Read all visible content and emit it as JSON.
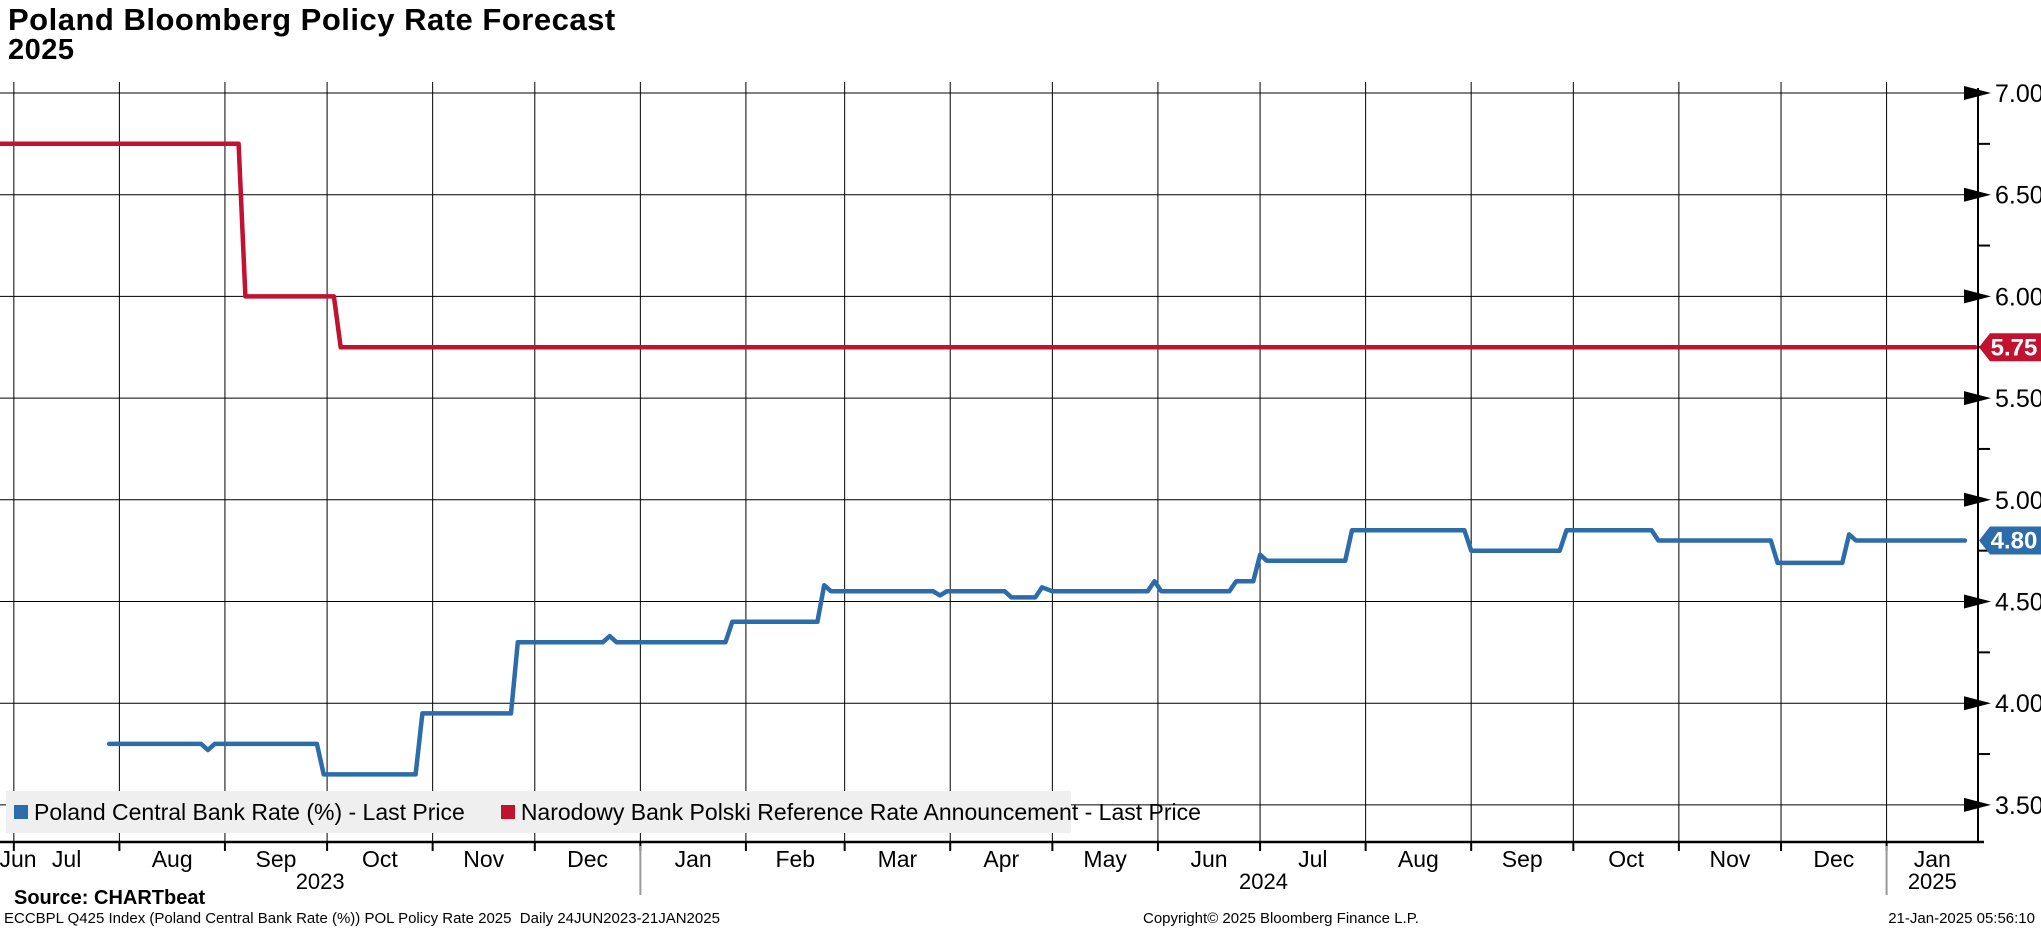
{
  "title": {
    "line1": "Poland Bloomberg Policy Rate Forecast",
    "line2": "2025"
  },
  "legend": {
    "items": [
      {
        "label": "Poland Central Bank Rate (%) - Last Price",
        "color": "#2d6cab"
      },
      {
        "label": "Narodowy Bank Polski Reference Rate Announcement - Last Price",
        "color": "#c11230"
      }
    ]
  },
  "footer": {
    "source": "Source: CHARTbeat",
    "ticker_line": "ECCBPL Q425 Index (Poland Central Bank Rate (%)) POL Policy Rate 2025  Daily 24JUN2023-21JAN2025",
    "copyright": "Copyright© 2025 Bloomberg Finance L.P.",
    "datetime": "21-Jan-2025 05:56:10"
  },
  "chart_data": {
    "type": "line",
    "title": "Poland Bloomberg Policy Rate Forecast 2025",
    "x_axis": {
      "start_date": "2023-06-24",
      "end_date": "2025-01-27",
      "years": [
        {
          "year": "2023",
          "months": [
            "Jun",
            "Jul",
            "Aug",
            "Sep",
            "Oct",
            "Nov",
            "Dec"
          ]
        },
        {
          "year": "2024",
          "months": [
            "Jan",
            "Feb",
            "Mar",
            "Apr",
            "May",
            "Jun",
            "Jul",
            "Aug",
            "Sep",
            "Oct",
            "Nov",
            "Dec"
          ]
        },
        {
          "year": "2025",
          "months": [
            "Jan"
          ]
        }
      ]
    },
    "y_axis": {
      "min": 3.5,
      "max": 7.0,
      "major_step": 0.5,
      "minor_step": 0.25,
      "tick_labels": [
        "7.00",
        "6.50",
        "6.00",
        "5.50",
        "5.00",
        "4.50",
        "4.00",
        "3.50"
      ],
      "grid": true
    },
    "series": [
      {
        "name": "Narodowy Bank Polski Reference Rate Announcement - Last Price",
        "color": "#c11230",
        "last_price": "5.75",
        "points": [
          [
            "2023-06-24",
            6.75
          ],
          [
            "2023-09-05",
            6.75
          ],
          [
            "2023-09-07",
            6.0
          ],
          [
            "2023-10-03",
            6.0
          ],
          [
            "2023-10-05",
            5.75
          ],
          [
            "2025-01-27",
            5.75
          ]
        ]
      },
      {
        "name": "Poland Central Bank Rate (%) - Last Price",
        "color": "#2d6cab",
        "last_price": "4.80",
        "points": [
          [
            "2023-07-29",
            3.8
          ],
          [
            "2023-08-25",
            3.8
          ],
          [
            "2023-08-27",
            3.77
          ],
          [
            "2023-08-29",
            3.8
          ],
          [
            "2023-09-28",
            3.8
          ],
          [
            "2023-09-30",
            3.65
          ],
          [
            "2023-10-27",
            3.65
          ],
          [
            "2023-10-29",
            3.95
          ],
          [
            "2023-11-24",
            3.95
          ],
          [
            "2023-11-26",
            4.3
          ],
          [
            "2023-12-21",
            4.3
          ],
          [
            "2023-12-23",
            4.33
          ],
          [
            "2023-12-25",
            4.3
          ],
          [
            "2024-01-26",
            4.3
          ],
          [
            "2024-01-28",
            4.4
          ],
          [
            "2024-02-22",
            4.4
          ],
          [
            "2024-02-24",
            4.58
          ],
          [
            "2024-02-26",
            4.55
          ],
          [
            "2024-03-27",
            4.55
          ],
          [
            "2024-03-29",
            4.53
          ],
          [
            "2024-03-31",
            4.55
          ],
          [
            "2024-04-17",
            4.55
          ],
          [
            "2024-04-19",
            4.52
          ],
          [
            "2024-04-26",
            4.52
          ],
          [
            "2024-04-28",
            4.57
          ],
          [
            "2024-05-01",
            4.55
          ],
          [
            "2024-05-29",
            4.55
          ],
          [
            "2024-05-31",
            4.6
          ],
          [
            "2024-06-02",
            4.55
          ],
          [
            "2024-06-22",
            4.55
          ],
          [
            "2024-06-24",
            4.6
          ],
          [
            "2024-06-29",
            4.6
          ],
          [
            "2024-07-01",
            4.73
          ],
          [
            "2024-07-03",
            4.7
          ],
          [
            "2024-07-26",
            4.7
          ],
          [
            "2024-07-28",
            4.85
          ],
          [
            "2024-08-30",
            4.85
          ],
          [
            "2024-09-01",
            4.75
          ],
          [
            "2024-09-27",
            4.75
          ],
          [
            "2024-09-29",
            4.85
          ],
          [
            "2024-10-24",
            4.85
          ],
          [
            "2024-10-26",
            4.8
          ],
          [
            "2024-11-28",
            4.8
          ],
          [
            "2024-11-30",
            4.69
          ],
          [
            "2024-12-19",
            4.69
          ],
          [
            "2024-12-21",
            4.83
          ],
          [
            "2024-12-23",
            4.8
          ],
          [
            "2025-01-24",
            4.8
          ]
        ]
      }
    ]
  }
}
